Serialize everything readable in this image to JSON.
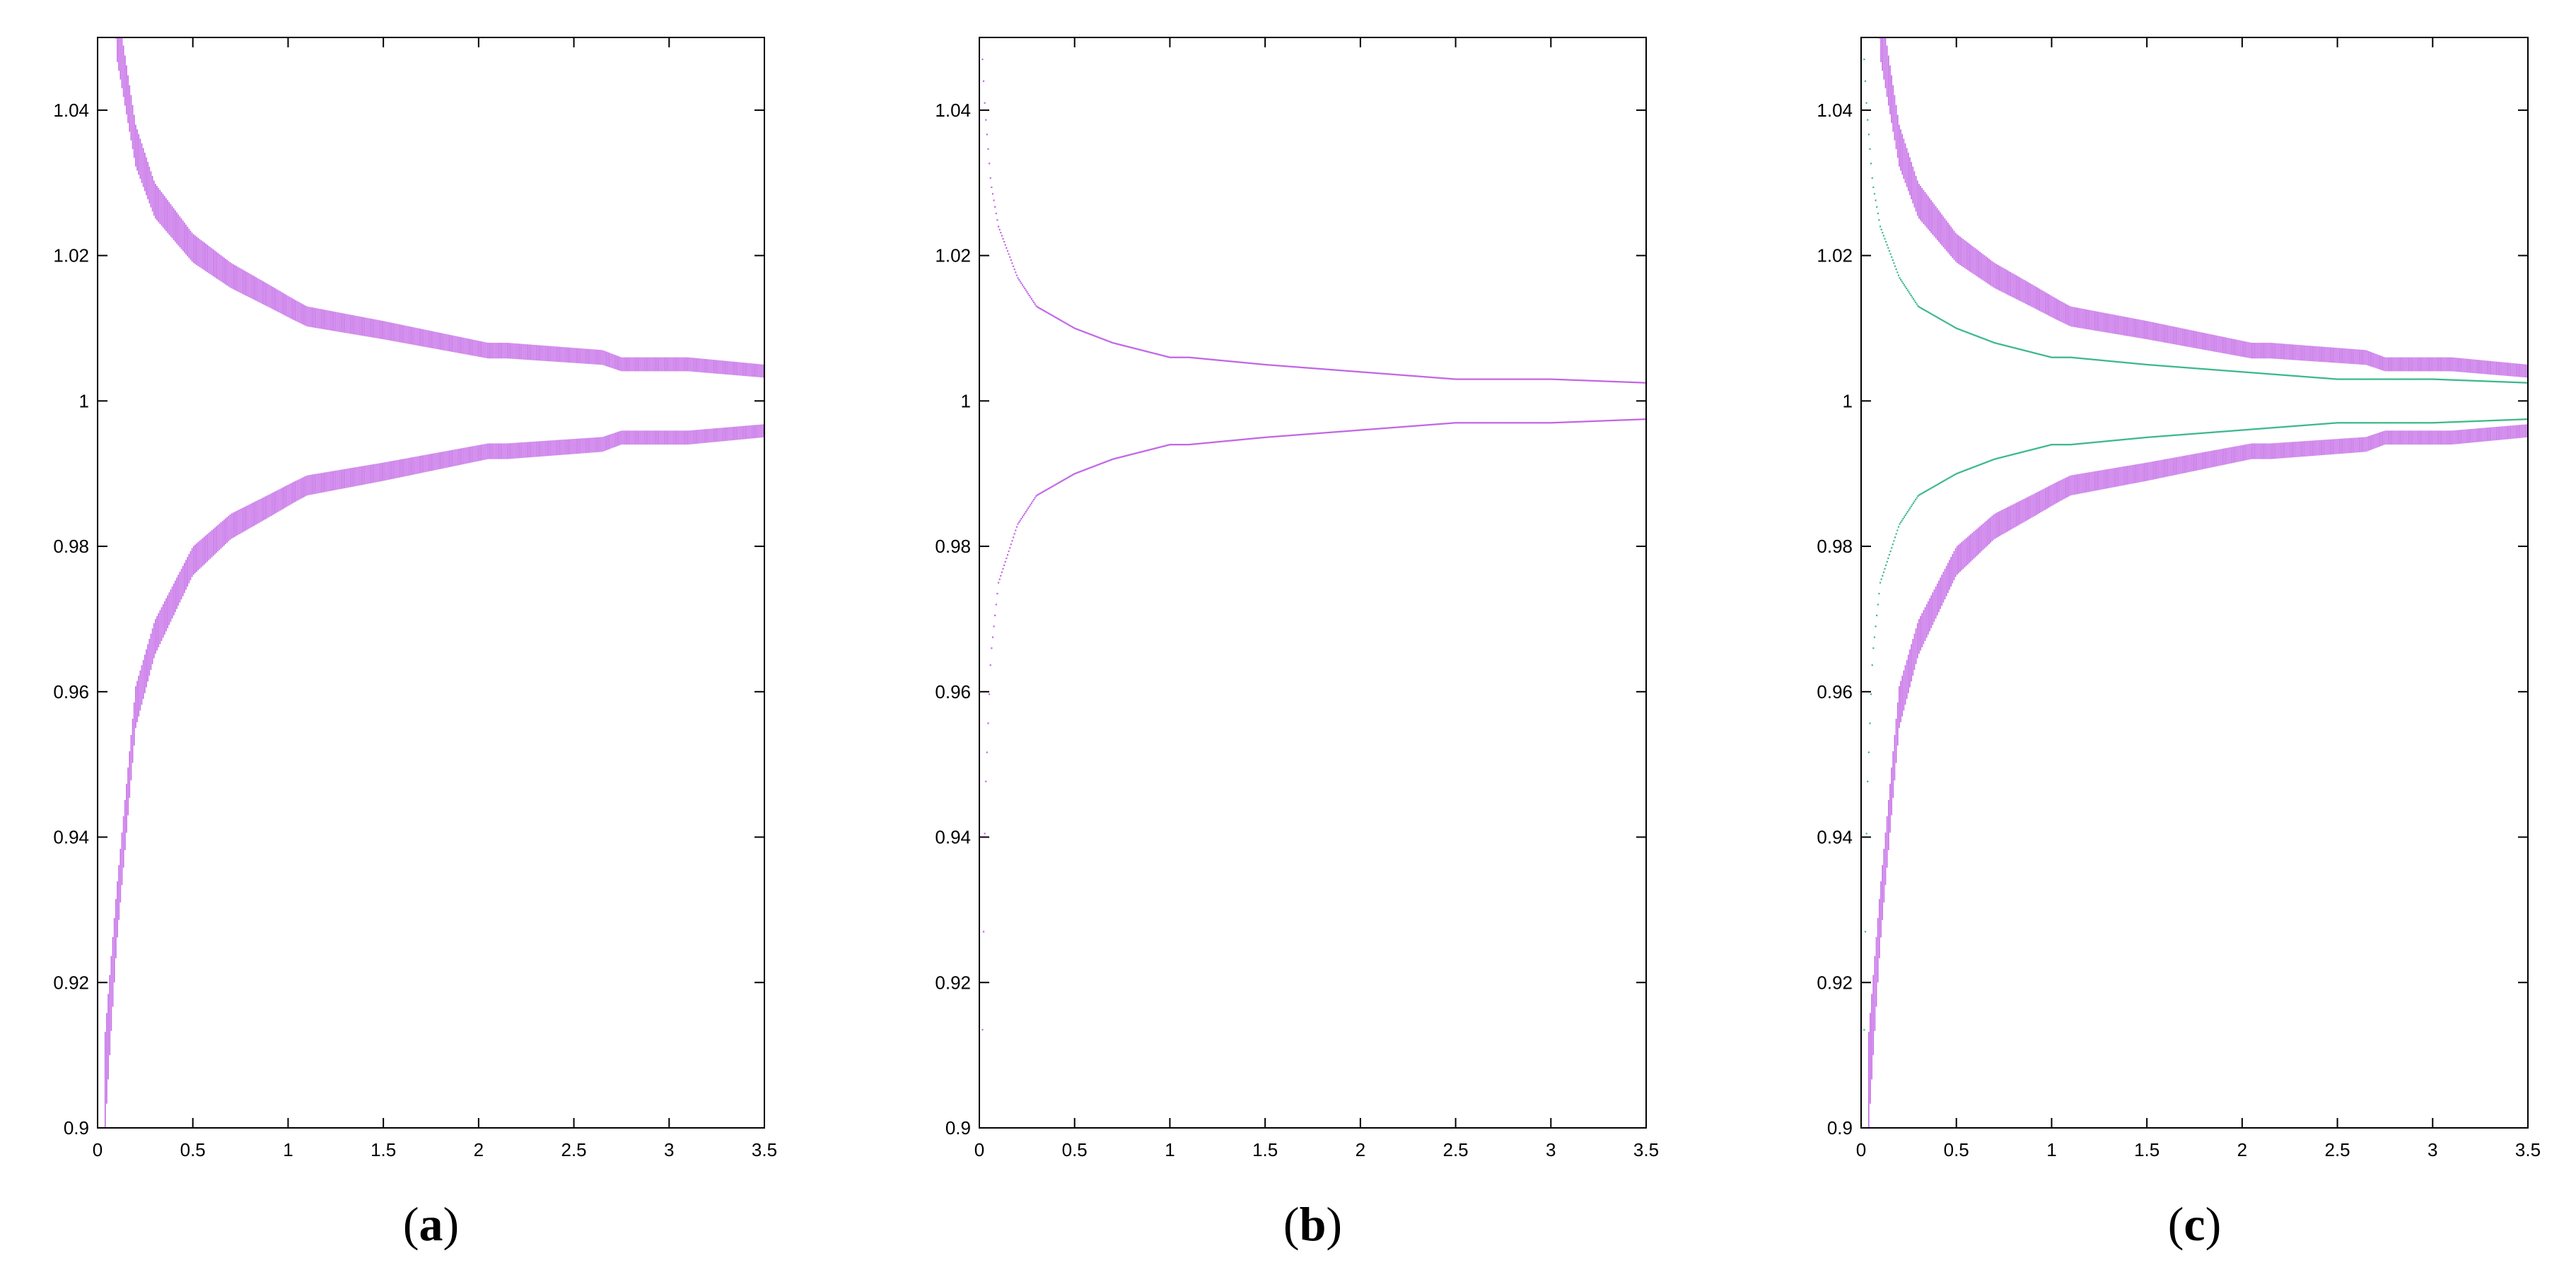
{
  "colors": {
    "primary": "#c266e6",
    "secondary": "#3cb88a",
    "axis": "#000000",
    "background": "#ffffff"
  },
  "chart_data": [
    {
      "panel": "(a)",
      "type": "scatter",
      "title": "",
      "xlabel": "",
      "ylabel": "",
      "xlim": [
        0,
        3.5
      ],
      "ylim": [
        0.9,
        1.05
      ],
      "xticks": [
        "0",
        "0.5",
        "1",
        "1.5",
        "2",
        "2.5",
        "3",
        "3.5"
      ],
      "yticks": [
        "0.9",
        "0.92",
        "0.94",
        "0.96",
        "0.98",
        "1",
        "1.02",
        "1.04"
      ],
      "grid": false,
      "series": [
        {
          "color": "#c266e6",
          "style": "band",
          "x": [
            0.04,
            0.1,
            0.2,
            0.3,
            0.5,
            0.7,
            0.9,
            1.03,
            1.1,
            1.5,
            2.05,
            2.15,
            2.65,
            2.75,
            3.0,
            3.1,
            3.5
          ],
          "upper": [
            1.1,
            1.055,
            1.038,
            1.03,
            1.023,
            1.019,
            1.016,
            1.014,
            1.013,
            1.011,
            1.008,
            1.008,
            1.007,
            1.006,
            1.006,
            1.006,
            1.005
          ],
          "lower": [
            0.9,
            0.925,
            0.955,
            0.965,
            0.976,
            0.981,
            0.984,
            0.986,
            0.987,
            0.989,
            0.992,
            0.992,
            0.993,
            0.994,
            0.994,
            0.994,
            0.995
          ]
        }
      ]
    },
    {
      "panel": "(b)",
      "type": "scatter",
      "title": "",
      "xlabel": "",
      "ylabel": "",
      "xlim": [
        0,
        3.5
      ],
      "ylim": [
        0.9,
        1.05
      ],
      "xticks": [
        "0",
        "0.5",
        "1",
        "1.5",
        "2",
        "2.5",
        "3",
        "3.5"
      ],
      "yticks": [
        "0.9",
        "0.92",
        "0.94",
        "0.96",
        "0.98",
        "1",
        "1.02",
        "1.04"
      ],
      "grid": false,
      "series": [
        {
          "color": "#c266e6",
          "style": "line",
          "x": [
            0.01,
            0.03,
            0.06,
            0.1,
            0.2,
            0.3,
            0.5,
            0.7,
            1.0,
            1.1,
            1.5,
            2.0,
            2.5,
            3.0,
            3.5
          ],
          "upper": [
            1.05,
            1.04,
            1.03,
            1.024,
            1.017,
            1.013,
            1.01,
            1.008,
            1.006,
            1.006,
            1.005,
            1.004,
            1.003,
            1.003,
            1.0025
          ],
          "lower": [
            0.9,
            0.945,
            0.965,
            0.975,
            0.983,
            0.987,
            0.99,
            0.992,
            0.994,
            0.994,
            0.995,
            0.996,
            0.997,
            0.997,
            0.9975
          ]
        }
      ]
    },
    {
      "panel": "(c)",
      "type": "scatter",
      "title": "",
      "xlabel": "",
      "ylabel": "",
      "xlim": [
        0,
        3.5
      ],
      "ylim": [
        0.9,
        1.05
      ],
      "xticks": [
        "0",
        "0.5",
        "1",
        "1.5",
        "2",
        "2.5",
        "3",
        "3.5"
      ],
      "yticks": [
        "0.9",
        "0.92",
        "0.94",
        "0.96",
        "0.98",
        "1",
        "1.02",
        "1.04"
      ],
      "grid": false,
      "series": [
        {
          "color": "#c266e6",
          "style": "band",
          "x": [
            0.04,
            0.1,
            0.2,
            0.3,
            0.5,
            0.7,
            0.9,
            1.03,
            1.1,
            1.5,
            2.05,
            2.15,
            2.65,
            2.75,
            3.0,
            3.1,
            3.5
          ],
          "upper": [
            1.1,
            1.055,
            1.038,
            1.03,
            1.023,
            1.019,
            1.016,
            1.014,
            1.013,
            1.011,
            1.008,
            1.008,
            1.007,
            1.006,
            1.006,
            1.006,
            1.005
          ],
          "lower": [
            0.9,
            0.925,
            0.955,
            0.965,
            0.976,
            0.981,
            0.984,
            0.986,
            0.987,
            0.989,
            0.992,
            0.992,
            0.993,
            0.994,
            0.994,
            0.994,
            0.995
          ]
        },
        {
          "color": "#3cb88a",
          "style": "line",
          "x": [
            0.01,
            0.03,
            0.06,
            0.1,
            0.2,
            0.3,
            0.5,
            0.7,
            1.0,
            1.1,
            1.5,
            2.0,
            2.5,
            3.0,
            3.5
          ],
          "upper": [
            1.05,
            1.04,
            1.03,
            1.024,
            1.017,
            1.013,
            1.01,
            1.008,
            1.006,
            1.006,
            1.005,
            1.004,
            1.003,
            1.003,
            1.0025
          ],
          "lower": [
            0.9,
            0.945,
            0.965,
            0.975,
            0.983,
            0.987,
            0.99,
            0.992,
            0.994,
            0.994,
            0.995,
            0.996,
            0.997,
            0.997,
            0.9975
          ]
        }
      ]
    }
  ]
}
